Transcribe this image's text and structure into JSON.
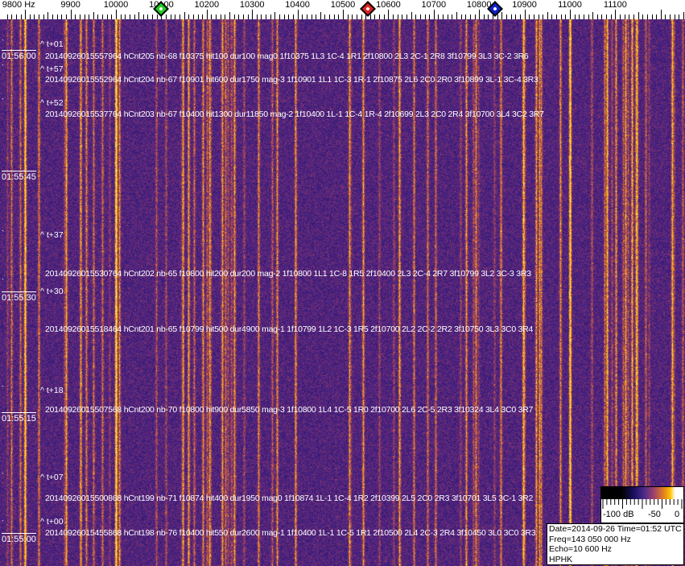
{
  "axis": {
    "unit_label": "9800 Hz",
    "labels": [
      {
        "freq": 9800,
        "text": "9800 Hz"
      },
      {
        "freq": 9900,
        "text": "9900"
      },
      {
        "freq": 10000,
        "text": "10000"
      },
      {
        "freq": 10100,
        "text": "10100"
      },
      {
        "freq": 10200,
        "text": "10200"
      },
      {
        "freq": 10300,
        "text": "10300"
      },
      {
        "freq": 10400,
        "text": "10400"
      },
      {
        "freq": 10500,
        "text": "10500"
      },
      {
        "freq": 10600,
        "text": "10600"
      },
      {
        "freq": 10700,
        "text": "10700"
      },
      {
        "freq": 10800,
        "text": "10800"
      },
      {
        "freq": 10900,
        "text": "10900"
      },
      {
        "freq": 11000,
        "text": "11000"
      },
      {
        "freq": 11100,
        "text": "11100"
      }
    ],
    "markers": [
      {
        "name": "green",
        "freq": 10100,
        "color": "#22cc22"
      },
      {
        "name": "red",
        "freq": 10555,
        "color": "#dd2222"
      },
      {
        "name": "blue",
        "freq": 10835,
        "color": "#1122cc"
      }
    ]
  },
  "time_labels": [
    "01:56:00",
    "01:55:45",
    "01:55:30",
    "01:55:15",
    "01:55:00"
  ],
  "events": [
    {
      "rel": "^ t+01",
      "text": "20140926015557964 hCnt205 nb-68 f10375 hit100 dur100 mag0 1f10375 1L3 1C-4 1R1 2f10800 2L3 2C-1 2R8 3f10799 3L3 3C-2 3R6"
    },
    {
      "rel": "^ t+57",
      "text": "20140926015552964 hCnt204 nb-67 f10901 hit600 dur1750 mag-3 1f10901 1L1 1C-3 1R-1 2f10875 2L6 2C0 2R0 3f10899 3L-1 3C-4 3R3"
    },
    {
      "rel": "^ t+52",
      "text": "20140926015537764 hCnt203 nb-67 f10400 hit1300 dur11850 mag-2 1f10400 1L-1 1C-4 1R-4 2f10699 2L3 2C0 2R4 3f10700 3L4 3C2 3R7"
    },
    {
      "rel": "^ t+37",
      "text": "20140926015530764 hCnt202 nb-65 f10800 hit200 dur200 mag-2 1f10800 1L1 1C-8 1R5 2f10400 2L3 2C-4 2R7 3f10799 3L2 3C-3 3R3"
    },
    {
      "rel": "^ t+30",
      "text": "20140926015518464 hCnt201 nb-65 f10799 hit500 dur4900 mag-1 1f10799 1L2 1C-3 1R5 2f10700 2L2 2C-2 2R2 3f10750 3L3 3C0 3R4"
    },
    {
      "rel": "^ t+18",
      "text": "20140926015507568 hCnt200 nb-70 f10800 hit900 dur5850 mag-3 1f10800 1L4 1C-5 1R0 2f10700 2L6 2C-5 2R3 3f10324 3L4 3C0 3R7"
    },
    {
      "rel": "^ t+07",
      "text": "20140926015500868 hCnt199 nb-71 f10874 hit400 dur1950 mag0 1f10874 1L-1 1C-4 1R2 2f10399 2L5 2C0 2R3 3f10701 3L5 3C-1 3R2"
    },
    {
      "rel": "^ t+00",
      "text": "20140926015455868 hCnt198 nb-76 f10400 hit550 dur2600 mag-1 1f10400 1L-1 1C-5 1R1 2f10500 2L4 2C-3 2R4 3f10450 3L0 3C0 3R3"
    }
  ],
  "colorscale": {
    "labels": [
      "-100 dB",
      "-50",
      "0"
    ]
  },
  "info": {
    "date_time": "Date=2014-09-26 Time=01:52 UTC",
    "freq": "Freq=143 050 000 Hz",
    "echo": "Echo=10 600 Hz",
    "station": "HPHK"
  }
}
